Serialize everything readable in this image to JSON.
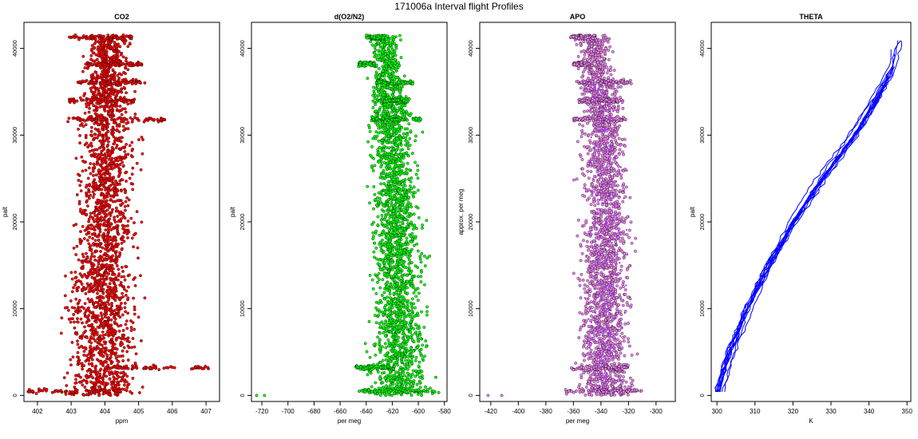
{
  "page_title": "171006a   Interval flight Profiles",
  "colors": {
    "co2": "#ff0000",
    "o2n2": "#00ff00",
    "apo": "#ee82ee",
    "apo_dark": "#9b30ff",
    "theta": "#0000ff",
    "edge": "#000000"
  },
  "chart_data": [
    {
      "type": "scatter",
      "title": "CO2",
      "xlabel": "ppm",
      "ylabel": "palt",
      "xlim": [
        401.6,
        407.4
      ],
      "ylim": [
        -700,
        43000
      ],
      "xticks": [
        "402",
        "403",
        "404",
        "405",
        "406",
        "407"
      ],
      "xtick_values": [
        402,
        403,
        404,
        405,
        406,
        407
      ],
      "yticks": [
        "0",
        "10000",
        "20000",
        "30000",
        "40000"
      ],
      "ytick_values": [
        0,
        10000,
        20000,
        30000,
        40000
      ],
      "profile": {
        "center": [
          [
            0,
            403.9
          ],
          [
            10000,
            403.9
          ],
          [
            20000,
            404.0
          ],
          [
            30000,
            404.1
          ],
          [
            41000,
            404.1
          ]
        ],
        "spread": [
          [
            0,
            0.9
          ],
          [
            10000,
            0.8
          ],
          [
            20000,
            0.7
          ],
          [
            30000,
            0.65
          ],
          [
            41000,
            0.5
          ]
        ]
      },
      "level_legs": [
        {
          "alt": 500,
          "from": 401.7,
          "to": 404.6
        },
        {
          "alt": 3200,
          "from": 404.0,
          "to": 407.1
        },
        {
          "alt": 31800,
          "from": 402.9,
          "to": 405.8
        },
        {
          "alt": 34000,
          "from": 402.9,
          "to": 404.9
        },
        {
          "alt": 36100,
          "from": 403.2,
          "to": 405.2
        },
        {
          "alt": 38200,
          "from": 403.4,
          "to": 405.1
        },
        {
          "alt": 41300,
          "from": 402.9,
          "to": 404.8
        }
      ]
    },
    {
      "type": "scatter",
      "title": "d(O2/N2)",
      "xlabel": "per meg",
      "ylabel": "palt",
      "xlim": [
        -728,
        -578
      ],
      "ylim": [
        -700,
        43000
      ],
      "xticks": [
        "-720",
        "-700",
        "-680",
        "-660",
        "-640",
        "-620",
        "-600",
        "-580"
      ],
      "xtick_values": [
        -720,
        -700,
        -680,
        -660,
        -640,
        -620,
        -600,
        -580
      ],
      "yticks": [
        "0",
        "10000",
        "20000",
        "30000",
        "40000"
      ],
      "ytick_values": [
        0,
        10000,
        20000,
        30000,
        40000
      ],
      "profile": {
        "center": [
          [
            0,
            -615
          ],
          [
            10000,
            -615
          ],
          [
            20000,
            -616
          ],
          [
            30000,
            -620
          ],
          [
            41000,
            -626
          ]
        ],
        "spread": [
          [
            0,
            18
          ],
          [
            10000,
            16
          ],
          [
            20000,
            15
          ],
          [
            30000,
            14
          ],
          [
            41000,
            10
          ]
        ]
      },
      "level_legs": [
        {
          "alt": 500,
          "from": -646,
          "to": -584
        },
        {
          "alt": 3200,
          "from": -648,
          "to": -618
        },
        {
          "alt": 31800,
          "from": -636,
          "to": -598
        },
        {
          "alt": 34000,
          "from": -632,
          "to": -606
        },
        {
          "alt": 36100,
          "from": -634,
          "to": -604
        },
        {
          "alt": 38200,
          "from": -646,
          "to": -632
        },
        {
          "alt": 41300,
          "from": -640,
          "to": -626
        }
      ],
      "outliers": [
        [
          0,
          -724
        ],
        [
          0,
          -718
        ]
      ]
    },
    {
      "type": "scatter",
      "title": "APO",
      "xlabel": "per meg",
      "ylabel": "approx. per meg",
      "xlim": [
        -428,
        -286
      ],
      "ylim": [
        -700,
        43000
      ],
      "xticks": [
        "-420",
        "-400",
        "-380",
        "-360",
        "-340",
        "-320",
        "-300"
      ],
      "xtick_values": [
        -420,
        -400,
        -380,
        -360,
        -340,
        -320,
        -300
      ],
      "yticks": [
        "0",
        "10000",
        "20000",
        "30000",
        "40000"
      ],
      "ytick_values": [
        0,
        10000,
        20000,
        30000,
        40000
      ],
      "profile": {
        "center": [
          [
            0,
            -337
          ],
          [
            10000,
            -337
          ],
          [
            20000,
            -336
          ],
          [
            30000,
            -338
          ],
          [
            41000,
            -345
          ]
        ],
        "spread": [
          [
            0,
            17
          ],
          [
            10000,
            15
          ],
          [
            20000,
            14
          ],
          [
            30000,
            13
          ],
          [
            41000,
            10
          ]
        ]
      },
      "level_legs": [
        {
          "alt": 500,
          "from": -366,
          "to": -310
        },
        {
          "alt": 3200,
          "from": -362,
          "to": -320
        },
        {
          "alt": 31800,
          "from": -360,
          "to": -322
        },
        {
          "alt": 34000,
          "from": -356,
          "to": -324
        },
        {
          "alt": 36100,
          "from": -358,
          "to": -318
        },
        {
          "alt": 38200,
          "from": -360,
          "to": -346
        },
        {
          "alt": 41300,
          "from": -362,
          "to": -344
        }
      ],
      "outliers": [
        [
          0,
          -422
        ],
        [
          0,
          -412
        ]
      ]
    },
    {
      "type": "line",
      "title": "THETA",
      "xlabel": "K",
      "ylabel": "palt",
      "xlim": [
        298.5,
        351.0
      ],
      "ylim": [
        -700,
        43000
      ],
      "xticks": [
        "300",
        "310",
        "320",
        "330",
        "340",
        "350"
      ],
      "xtick_values": [
        300,
        310,
        320,
        330,
        340,
        350
      ],
      "yticks": [
        "0",
        "10000",
        "20000",
        "30000",
        "40000"
      ],
      "ytick_values": [
        0,
        10000,
        20000,
        30000,
        40000
      ],
      "profile": [
        [
          400,
          300.5
        ],
        [
          2000,
          301.5
        ],
        [
          5000,
          303.5
        ],
        [
          10000,
          308
        ],
        [
          15000,
          313.5
        ],
        [
          20000,
          320
        ],
        [
          25000,
          327.5
        ],
        [
          30000,
          336
        ],
        [
          35000,
          343
        ],
        [
          38000,
          346.5
        ],
        [
          41300,
          348
        ]
      ]
    }
  ]
}
